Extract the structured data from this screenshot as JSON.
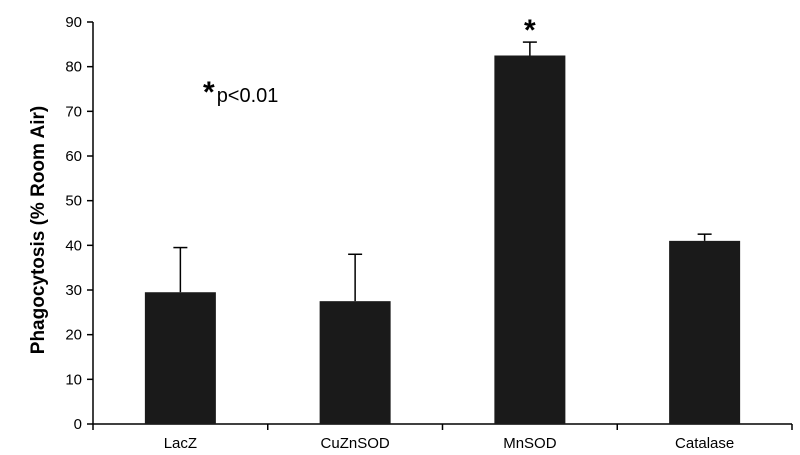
{
  "chart_data": {
    "type": "bar",
    "categories": [
      "LacZ",
      "CuZnSOD",
      "MnSOD",
      "Catalase"
    ],
    "values": [
      29.5,
      27.5,
      82.5,
      41
    ],
    "error_upper": [
      39.5,
      38,
      85.5,
      42.5
    ],
    "significance": [
      false,
      false,
      true,
      false
    ],
    "ylabel": "Phagocytosis (% Room Air)",
    "xlabel": "",
    "ylim": [
      0,
      90
    ],
    "yticks": [
      0,
      10,
      20,
      30,
      40,
      50,
      60,
      70,
      80,
      90
    ],
    "bar_color": "#1a1a1a",
    "grid": false,
    "annotation": {
      "star": "*",
      "text": "p<0.01"
    }
  }
}
